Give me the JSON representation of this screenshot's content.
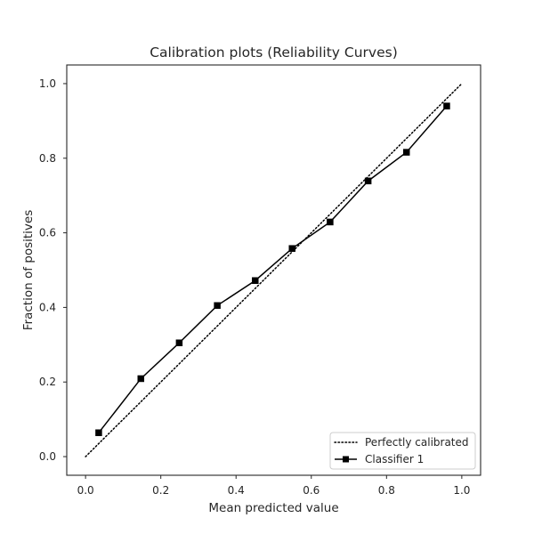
{
  "chart_data": {
    "type": "line",
    "title": "Calibration plots (Reliability Curves)",
    "xlabel": "Mean predicted value",
    "ylabel": "Fraction of positives",
    "xlim": [
      -0.05,
      1.05
    ],
    "ylim": [
      -0.05,
      1.05
    ],
    "xticks": [
      0.0,
      0.2,
      0.4,
      0.6,
      0.8,
      1.0
    ],
    "yticks": [
      0.0,
      0.2,
      0.4,
      0.6,
      0.8,
      1.0
    ],
    "xtick_labels": [
      "0.0",
      "0.2",
      "0.4",
      "0.6",
      "0.8",
      "1.0"
    ],
    "ytick_labels": [
      "0.0",
      "0.2",
      "0.4",
      "0.6",
      "0.8",
      "1.0"
    ],
    "grid": false,
    "legend_position": "lower-right",
    "series": [
      {
        "name": "Perfectly calibrated",
        "style": "dotted",
        "color": "#000000",
        "x": [
          0.0,
          1.0
        ],
        "y": [
          0.0,
          1.0
        ]
      },
      {
        "name": "Classifier 1",
        "style": "solid",
        "marker": "square",
        "color": "#000000",
        "x": [
          0.035,
          0.147,
          0.249,
          0.35,
          0.451,
          0.549,
          0.65,
          0.751,
          0.853,
          0.96
        ],
        "y": [
          0.064,
          0.209,
          0.305,
          0.405,
          0.472,
          0.558,
          0.629,
          0.739,
          0.816,
          0.94
        ]
      }
    ]
  }
}
